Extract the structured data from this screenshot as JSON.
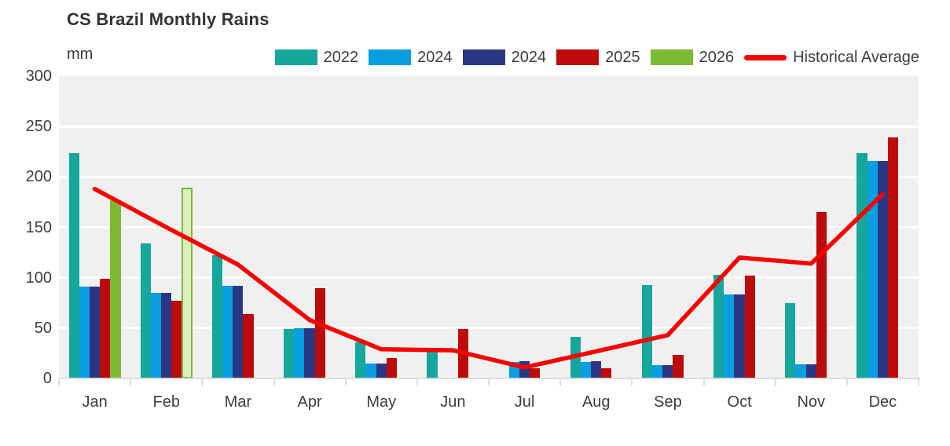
{
  "title": "CS Brazil Monthly Rains",
  "y_axis_unit": "mm",
  "colors": {
    "plot_background": "#f0f0f0",
    "gridline": "#ffffff",
    "axis": "#dcdcdc",
    "text": "#3d3d3d",
    "title_text": "#333333"
  },
  "legend": [
    {
      "label": "2022",
      "color": "#16a79c",
      "type": "swatch"
    },
    {
      "label": "2024",
      "color": "#089fe0",
      "type": "swatch"
    },
    {
      "label": "2024",
      "color": "#2b3785",
      "type": "swatch"
    },
    {
      "label": "2025",
      "color": "#bd0a0a",
      "type": "swatch"
    },
    {
      "label": "2026",
      "color": "#7cbb31",
      "type": "swatch"
    },
    {
      "label": "Historical Average",
      "color": "#fa0000",
      "type": "line"
    }
  ],
  "chart_data": {
    "type": "bar",
    "title": "CS Brazil Monthly Rains",
    "ylabel": "mm",
    "xlabel": "",
    "ylim": [
      0,
      300
    ],
    "yticks": [
      0,
      50,
      100,
      150,
      200,
      250,
      300
    ],
    "grid": "horizontal",
    "legend_position": "top",
    "categories": [
      "Jan",
      "Feb",
      "Mar",
      "Apr",
      "May",
      "Jun",
      "Jul",
      "Aug",
      "Sep",
      "Oct",
      "Nov",
      "Dec"
    ],
    "series": [
      {
        "name": "2022",
        "color": "#16a79c",
        "values": [
          224,
          134,
          122,
          49,
          36,
          30,
          1,
          41,
          93,
          103,
          75,
          224
        ]
      },
      {
        "name": "2024",
        "color": "#089fe0",
        "values": [
          91,
          85,
          92,
          50,
          15,
          0,
          16,
          16,
          13,
          83,
          14,
          216
        ]
      },
      {
        "name": "2024",
        "color": "#2b3785",
        "values": [
          91,
          85,
          92,
          50,
          15,
          0,
          17,
          17,
          13,
          83,
          14,
          216
        ]
      },
      {
        "name": "2025",
        "color": "#bd0a0a",
        "values": [
          99,
          77,
          64,
          90,
          20,
          49,
          10,
          10,
          23,
          102,
          165,
          239
        ]
      },
      {
        "name": "2026",
        "color": "#7cbb31",
        "light_fill": "#dcedc0",
        "values": [
          177,
          189,
          null,
          null,
          null,
          null,
          null,
          null,
          null,
          null,
          null,
          null
        ],
        "outline_indices": [
          1
        ]
      }
    ],
    "line_series": {
      "name": "Historical Average",
      "color": "#fa0000",
      "values": [
        188,
        150,
        113,
        58,
        29,
        28,
        11,
        27,
        43,
        120,
        114,
        183
      ]
    }
  }
}
